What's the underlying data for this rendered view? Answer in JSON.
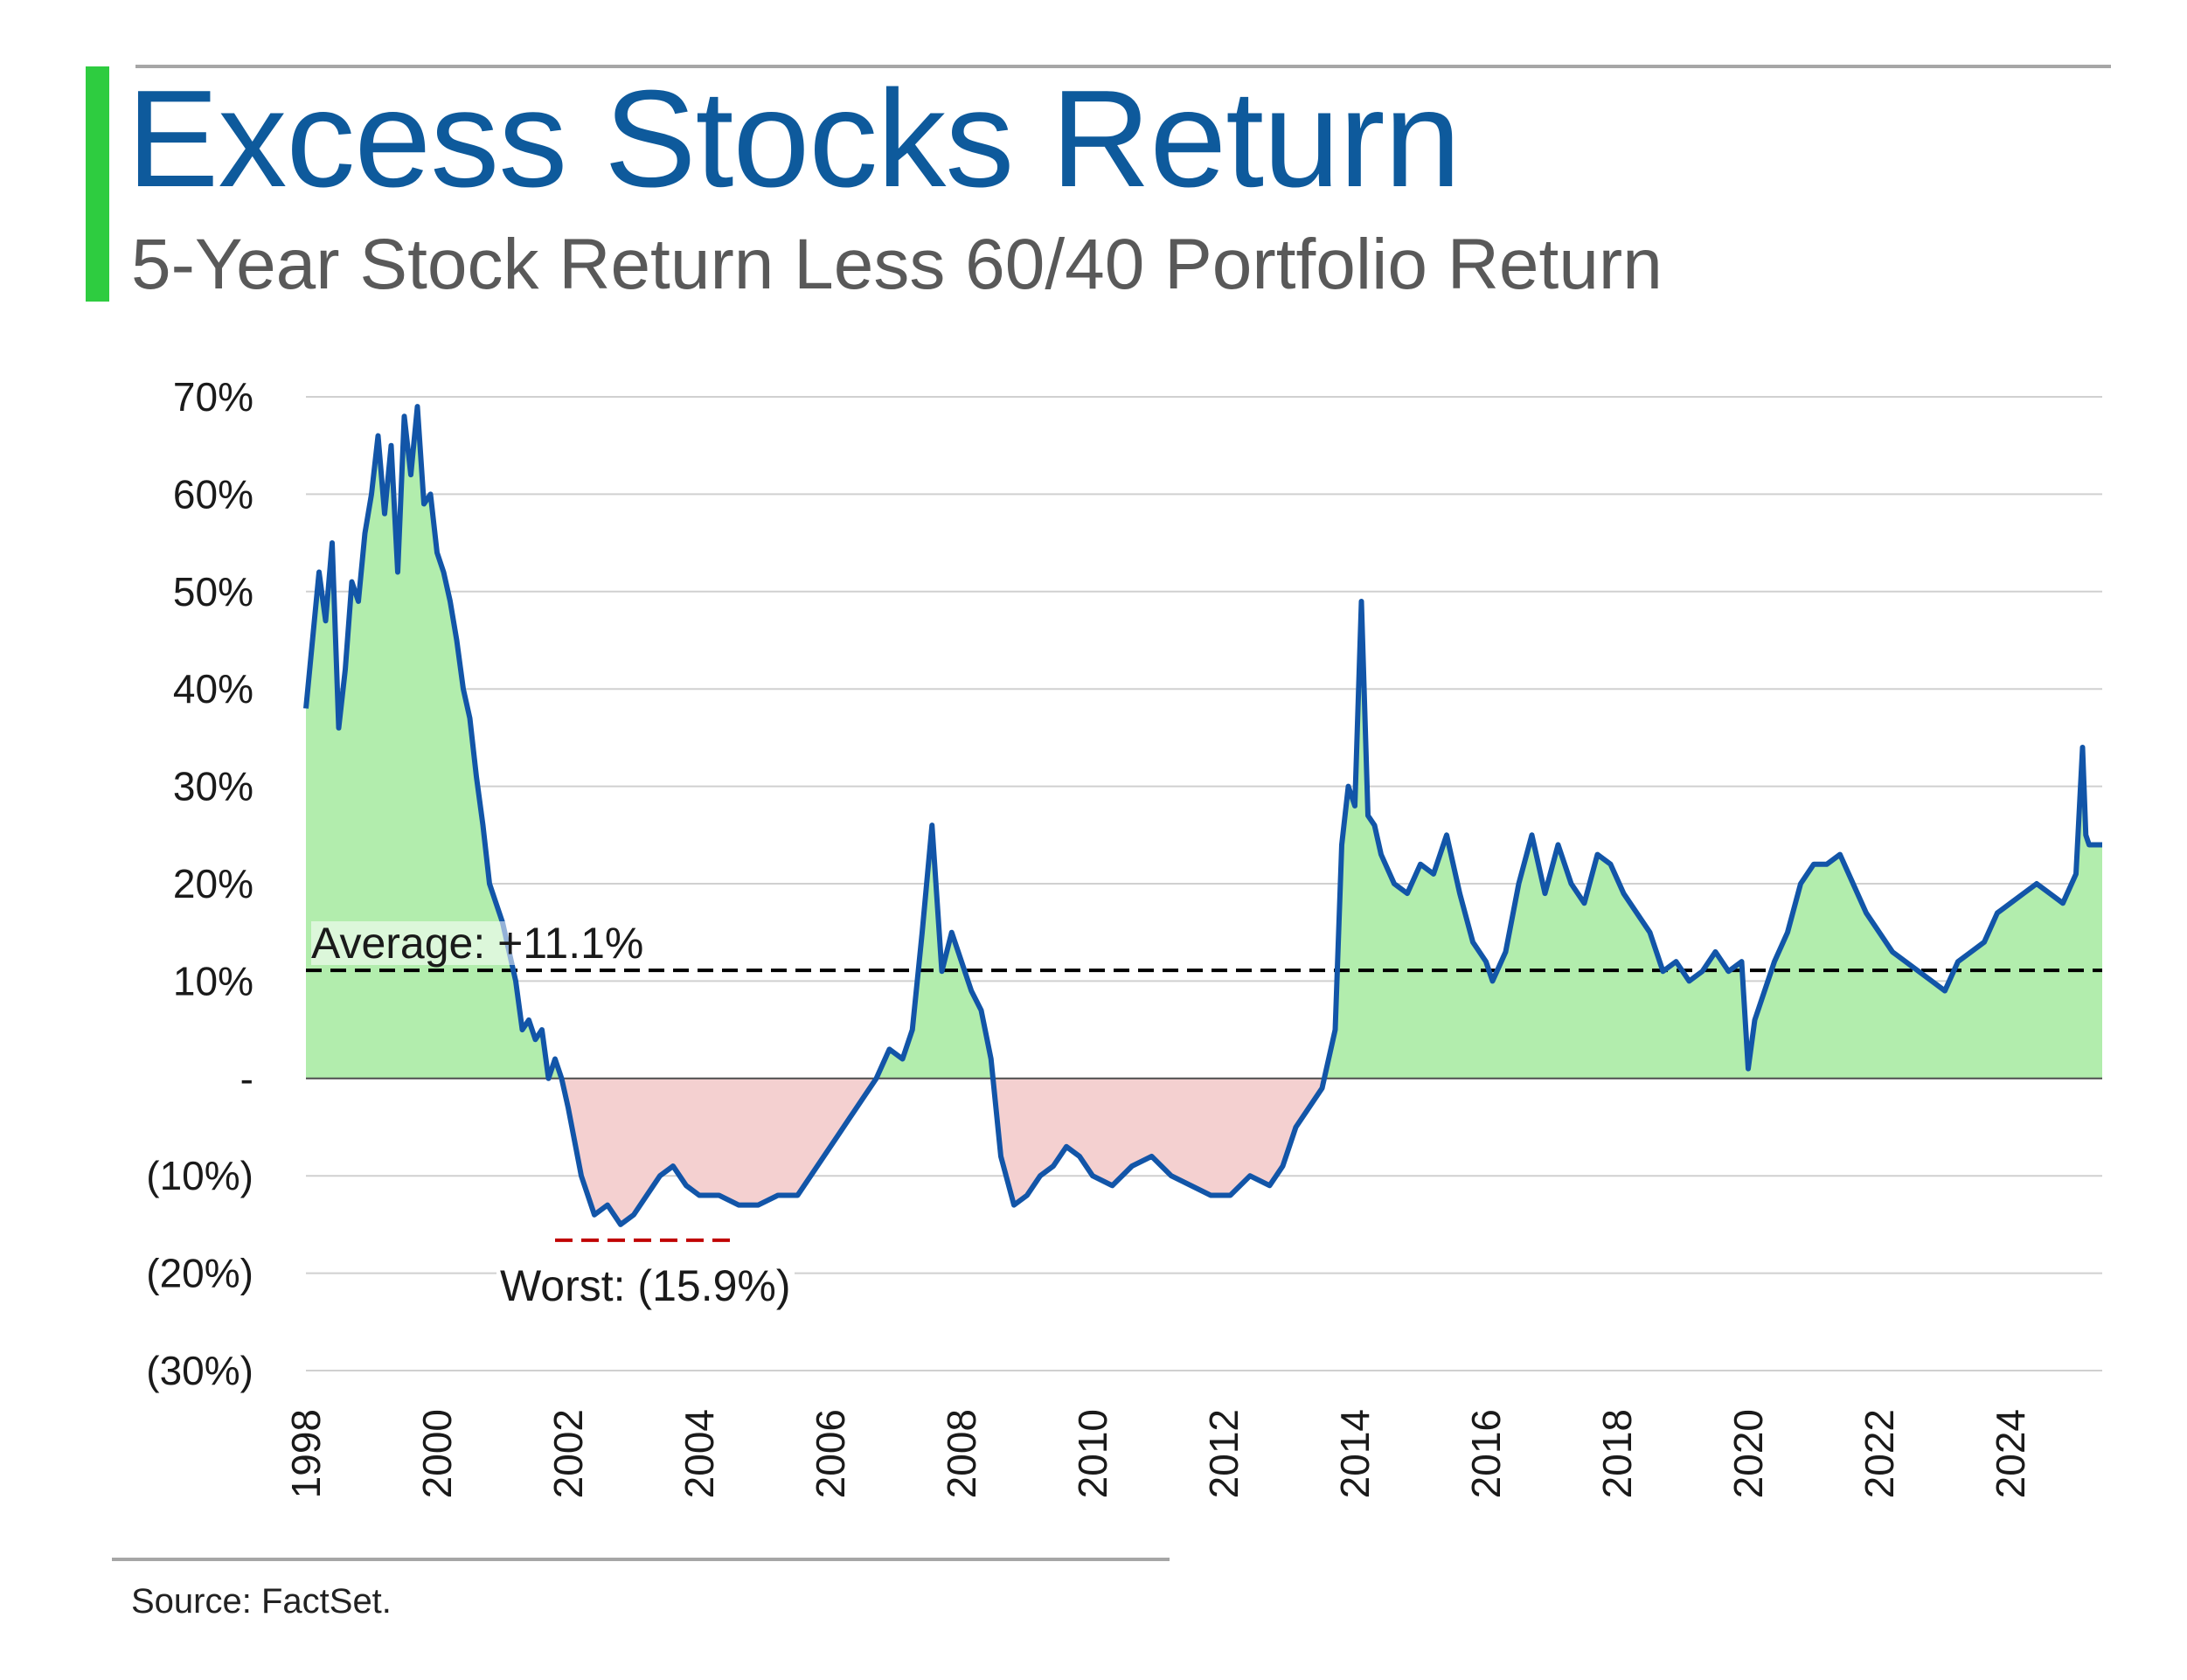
{
  "title": "Excess Stocks Return",
  "subtitle": "5-Year Stock Return Less 60/40 Portfolio Return",
  "source": "Source: FactSet.",
  "colors": {
    "title": "#0e5a9c",
    "accent": "#2ecc40",
    "line": "#1255a8",
    "positive_fill": "#b2edad",
    "negative_fill": "#f4d0d0",
    "worst_marker": "#c00000"
  },
  "chart_data": {
    "type": "area",
    "title": "Excess Stocks Return",
    "subtitle": "5-Year Stock Return Less 60/40 Portfolio Return",
    "xlabel": "",
    "ylabel": "",
    "xlim": [
      1998.0,
      2025.4
    ],
    "ylim": [
      -30,
      70
    ],
    "grid": true,
    "y_ticks": [
      70,
      60,
      50,
      40,
      30,
      20,
      10,
      0,
      -10,
      -20,
      -30
    ],
    "y_tick_labels": [
      "70%",
      "60%",
      "50%",
      "40%",
      "30%",
      "20%",
      "10%",
      "-",
      "(10%)",
      "(20%)",
      "(30%)"
    ],
    "x_ticks": [
      1998,
      2000,
      2002,
      2004,
      2006,
      2008,
      2010,
      2012,
      2014,
      2016,
      2018,
      2020,
      2022,
      2024
    ],
    "x_tick_labels": [
      "1998",
      "2000",
      "2002",
      "2004",
      "2006",
      "2008",
      "2010",
      "2012",
      "2014",
      "2016",
      "2018",
      "2020",
      "2022",
      "2024"
    ],
    "series": [
      {
        "name": "5-Year Stock Return Less 60/40 Portfolio Return",
        "x": [
          1998.0,
          1998.1,
          1998.2,
          1998.3,
          1998.4,
          1998.5,
          1998.6,
          1998.7,
          1998.8,
          1998.9,
          1999.0,
          1999.1,
          1999.2,
          1999.3,
          1999.4,
          1999.5,
          1999.6,
          1999.7,
          1999.8,
          1999.9,
          2000.0,
          2000.1,
          2000.2,
          2000.3,
          2000.4,
          2000.5,
          2000.6,
          2000.7,
          2000.8,
          2000.9,
          2001.0,
          2001.1,
          2001.2,
          2001.3,
          2001.4,
          2001.5,
          2001.6,
          2001.7,
          2001.8,
          2001.9,
          2002.0,
          2002.2,
          2002.4,
          2002.6,
          2002.8,
          2003.0,
          2003.2,
          2003.4,
          2003.6,
          2003.8,
          2004.0,
          2004.3,
          2004.6,
          2004.9,
          2005.2,
          2005.5,
          2005.8,
          2006.1,
          2006.3,
          2006.5,
          2006.7,
          2006.9,
          2007.1,
          2007.25,
          2007.4,
          2007.55,
          2007.7,
          2007.85,
          2008.0,
          2008.15,
          2008.3,
          2008.45,
          2008.6,
          2008.8,
          2009.0,
          2009.2,
          2009.4,
          2009.6,
          2009.8,
          2010.0,
          2010.3,
          2010.6,
          2010.9,
          2011.2,
          2011.5,
          2011.8,
          2012.1,
          2012.4,
          2012.7,
          2012.9,
          2013.1,
          2013.3,
          2013.5,
          2013.6,
          2013.7,
          2013.8,
          2013.9,
          2014.0,
          2014.1,
          2014.2,
          2014.3,
          2014.4,
          2014.6,
          2014.8,
          2015.0,
          2015.2,
          2015.4,
          2015.6,
          2015.8,
          2016.0,
          2016.1,
          2016.3,
          2016.5,
          2016.7,
          2016.9,
          2017.1,
          2017.3,
          2017.5,
          2017.7,
          2017.9,
          2018.1,
          2018.3,
          2018.5,
          2018.7,
          2018.9,
          2019.1,
          2019.3,
          2019.5,
          2019.7,
          2019.9,
          2020.0,
          2020.1,
          2020.2,
          2020.4,
          2020.6,
          2020.8,
          2021.0,
          2021.2,
          2021.4,
          2021.6,
          2021.8,
          2022.0,
          2022.2,
          2022.4,
          2022.6,
          2022.8,
          2023.0,
          2023.2,
          2023.4,
          2023.6,
          2023.8,
          2024.0,
          2024.2,
          2024.4,
          2024.6,
          2024.8,
          2025.0,
          2025.1,
          2025.15,
          2025.2,
          2025.3,
          2025.4
        ],
        "values": [
          38,
          45,
          52,
          47,
          55,
          36,
          42,
          51,
          49,
          56,
          60,
          66,
          58,
          65,
          52,
          68,
          62,
          69,
          59,
          60,
          54,
          52,
          49,
          45,
          40,
          37,
          31,
          26,
          20,
          18,
          16,
          13,
          10,
          5,
          6,
          4,
          5,
          0,
          2,
          0,
          -3,
          -10,
          -14,
          -13,
          -15,
          -14,
          -12,
          -10,
          -9,
          -11,
          -12,
          -12,
          -13,
          -13,
          -12,
          -12,
          -9,
          -6,
          -4,
          -2,
          0,
          3,
          2,
          5,
          15,
          26,
          11,
          15,
          12,
          9,
          7,
          2,
          -8,
          -13,
          -12,
          -10,
          -9,
          -7,
          -8,
          -10,
          -11,
          -9,
          -8,
          -10,
          -11,
          -12,
          -12,
          -10,
          -11,
          -9,
          -5,
          -3,
          -1,
          2,
          5,
          24,
          30,
          28,
          49,
          27,
          26,
          23,
          20,
          19,
          22,
          21,
          25,
          19,
          14,
          12,
          10,
          13,
          20,
          25,
          19,
          24,
          20,
          18,
          23,
          22,
          19,
          17,
          15,
          11,
          12,
          10,
          11,
          13,
          11,
          12,
          1,
          6,
          8,
          12,
          15,
          20,
          22,
          22,
          23,
          20,
          17,
          15,
          13,
          12,
          11,
          10,
          9,
          12,
          13,
          14,
          17,
          18,
          19,
          20,
          19,
          18,
          21,
          34,
          25,
          24,
          24,
          24
        ]
      }
    ],
    "reference_lines": [
      {
        "name": "Average",
        "value": 11.1,
        "label": "Average: +11.1%"
      },
      {
        "name": "Worst",
        "value": -15.9,
        "label": "Worst: (15.9%)"
      }
    ]
  }
}
